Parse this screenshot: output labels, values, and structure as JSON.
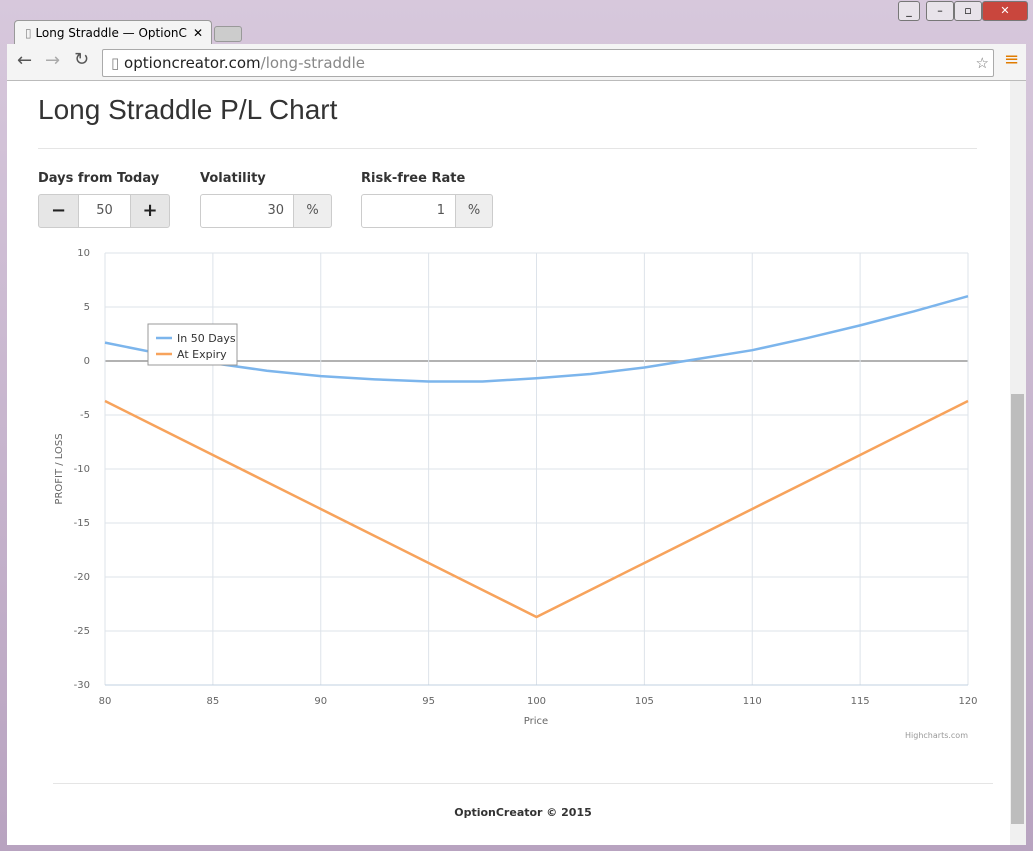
{
  "browser": {
    "tab_title": "Long Straddle — OptionC",
    "url_host": "optioncreator.com",
    "url_path": "/long-straddle"
  },
  "page": {
    "title": "Long Straddle P/L Chart",
    "controls": {
      "days": {
        "label": "Days from Today",
        "minus": "−",
        "value": "50",
        "plus": "+"
      },
      "volatility": {
        "label": "Volatility",
        "value": "30",
        "unit": "%"
      },
      "rate": {
        "label": "Risk-free Rate",
        "value": "1",
        "unit": "%"
      }
    },
    "credits": "Highcharts.com",
    "footer": "OptionCreator © 2015"
  },
  "chart_data": {
    "type": "line",
    "x_label": "Price",
    "y_label": "PROFIT / LOSS",
    "x": [
      80,
      82.5,
      85,
      87.5,
      90,
      92.5,
      95,
      97.5,
      100,
      102.5,
      105,
      107.5,
      110,
      112.5,
      115,
      117.5,
      120
    ],
    "xlim": [
      80,
      120
    ],
    "xticks": [
      80,
      85,
      90,
      95,
      100,
      105,
      110,
      115,
      120
    ],
    "ylim": [
      -30,
      10
    ],
    "yticks": [
      -30,
      -25,
      -20,
      -15,
      -10,
      -5,
      0,
      5,
      10
    ],
    "grid": true,
    "series": [
      {
        "name": "In 50 Days",
        "color": "#7cb5ec",
        "values": [
          1.7,
          0.7,
          -0.2,
          -0.9,
          -1.4,
          -1.7,
          -1.9,
          -1.9,
          -1.6,
          -1.2,
          -0.6,
          0.2,
          1.0,
          2.1,
          3.3,
          4.6,
          6.0
        ]
      },
      {
        "name": "At Expiry",
        "color": "#f7a35c",
        "values": [
          -3.7,
          -6.2,
          -8.7,
          -11.2,
          -13.7,
          -16.2,
          -18.7,
          -21.2,
          -23.7,
          -21.2,
          -18.7,
          -16.2,
          -13.7,
          -11.2,
          -8.7,
          -6.2,
          -3.7
        ]
      }
    ]
  }
}
